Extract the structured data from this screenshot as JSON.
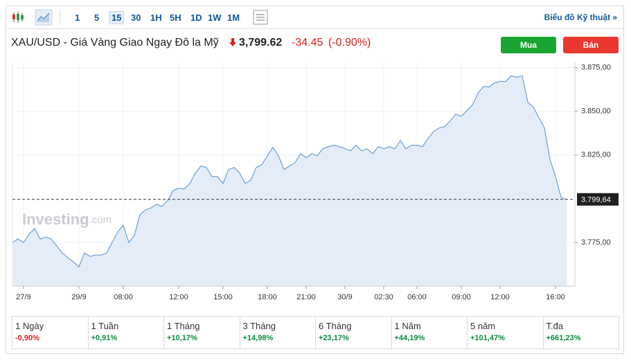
{
  "toolbar": {
    "intervals": [
      "1",
      "5",
      "15",
      "30",
      "1H",
      "5H",
      "1D",
      "1W",
      "1M"
    ],
    "active_interval": "15",
    "technical_link": "Biểu đồ Kỹ thuật »"
  },
  "quote": {
    "name": "XAU/USD - Giá Vàng Giao Ngay Đô la Mỹ",
    "price": "3,799.62",
    "change": "-34.45",
    "change_pct": "(-0.90%)",
    "buy": "Mua",
    "sell": "Bán"
  },
  "chart_data": {
    "type": "area",
    "watermark": [
      "Investing",
      ".com"
    ],
    "categories": [
      null,
      null,
      "27/9",
      null,
      null,
      null,
      null,
      null,
      null,
      null,
      null,
      null,
      "29/9",
      null,
      null,
      null,
      null,
      null,
      null,
      null,
      "08:00",
      null,
      null,
      null,
      null,
      null,
      null,
      null,
      null,
      null,
      "12:00",
      null,
      null,
      null,
      null,
      null,
      null,
      null,
      "15:00",
      null,
      null,
      null,
      null,
      null,
      null,
      null,
      "18:00",
      null,
      null,
      null,
      null,
      null,
      null,
      "21:00",
      null,
      null,
      null,
      null,
      null,
      null,
      "30/9",
      null,
      null,
      null,
      null,
      null,
      null,
      "02:30",
      null,
      null,
      null,
      null,
      null,
      "06:00",
      null,
      null,
      null,
      null,
      null,
      null,
      null,
      "09:00",
      null,
      null,
      null,
      null,
      null,
      null,
      "12:00",
      null,
      null,
      null,
      null,
      null,
      null,
      null,
      null,
      null,
      "16:00",
      null,
      null
    ],
    "values": [
      3775.0,
      3777.0,
      3775.0,
      3779.8,
      3783.0,
      3777.0,
      3778.2,
      3777.0,
      3773.0,
      3769.0,
      3766.3,
      3763.9,
      3761.1,
      3769.0,
      3767.0,
      3767.8,
      3767.8,
      3769.0,
      3775.0,
      3781.0,
      3784.9,
      3775.0,
      3779.0,
      3790.9,
      3793.6,
      3794.8,
      3796.8,
      3795.6,
      3798.8,
      3804.8,
      3806.0,
      3805.6,
      3808.7,
      3814.7,
      3818.7,
      3817.9,
      3812.7,
      3812.7,
      3808.7,
      3816.7,
      3817.9,
      3814.7,
      3808.7,
      3810.7,
      3817.9,
      3819.5,
      3824.6,
      3829.4,
      3824.6,
      3816.7,
      3818.7,
      3820.6,
      3825.8,
      3823.4,
      3825.8,
      3824.6,
      3828.6,
      3829.8,
      3830.6,
      3829.8,
      3828.6,
      3827.4,
      3830.6,
      3827.4,
      3828.6,
      3825.8,
      3829.8,
      3828.6,
      3829.8,
      3828.6,
      3833.3,
      3828.6,
      3830.6,
      3830.6,
      3829.8,
      3834.5,
      3838.5,
      3840.5,
      3841.3,
      3844.5,
      3848.4,
      3847.2,
      3850.4,
      3853.6,
      3860.3,
      3864.3,
      3863.9,
      3866.3,
      3867.1,
      3867.1,
      3870.3,
      3869.5,
      3870.3,
      3855.2,
      3852.4,
      3846.4,
      3840.5,
      3822.6,
      3812.7,
      3800.8,
      3799.6
    ],
    "color": "#6a9fd4",
    "fill": "#e4edf7",
    "ylim": [
      3750,
      3878
    ],
    "yticks": [
      {
        "value": 3775,
        "label": "3.775,00"
      },
      {
        "value": 3825,
        "label": "3.825,00"
      },
      {
        "value": 3850,
        "label": "3.850,00"
      },
      {
        "value": 3875,
        "label": "3.875,00"
      }
    ],
    "last_price": {
      "value": 3799.64,
      "label": "3.799,64"
    },
    "grid": true
  },
  "performance": [
    {
      "period": "1 Ngày",
      "change": "-0,90%"
    },
    {
      "period": "1 Tuần",
      "change": "+0,91%"
    },
    {
      "period": "1 Tháng",
      "change": "+10,17%"
    },
    {
      "period": "3 Tháng",
      "change": "+14,98%"
    },
    {
      "period": "6 Tháng",
      "change": "+23,17%"
    },
    {
      "period": "1 Năm",
      "change": "+44,19%"
    },
    {
      "period": "5 năm",
      "change": "+101,47%"
    },
    {
      "period": "T.đa",
      "change": "+661,23%"
    }
  ]
}
